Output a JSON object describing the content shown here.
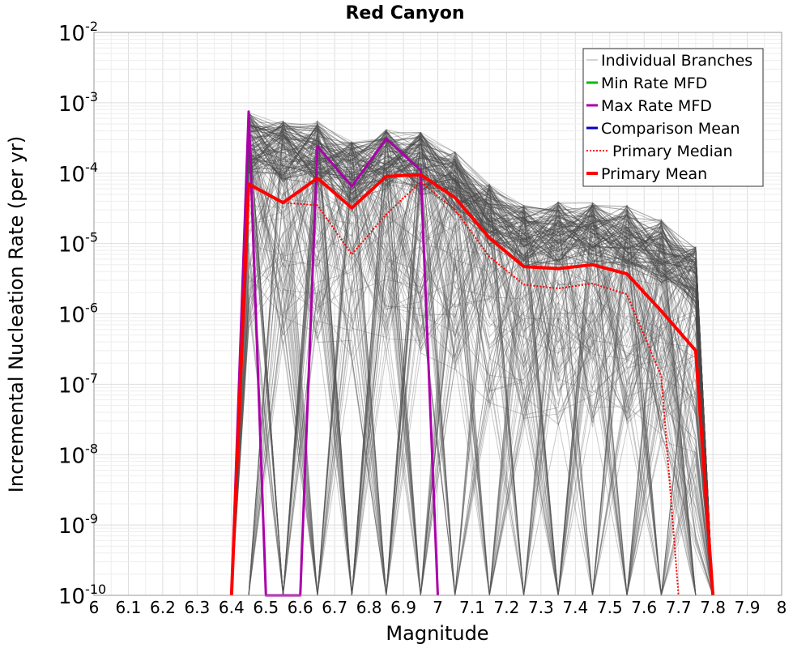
{
  "chart_data": {
    "type": "line",
    "title": "Red Canyon",
    "xlabel": "Magnitude",
    "ylabel": "Incremental Nucleation Rate (per yr)",
    "xlim": [
      6,
      8
    ],
    "ylim": [
      1e-10,
      0.01
    ],
    "yscale": "log",
    "grid": true,
    "legend_position": "top-right",
    "x_ticks": [
      "6",
      "6.1",
      "6.2",
      "6.3",
      "6.4",
      "6.5",
      "6.6",
      "6.7",
      "6.8",
      "6.9",
      "7",
      "7.1",
      "7.2",
      "7.3",
      "7.4",
      "7.5",
      "7.6",
      "7.7",
      "7.8",
      "7.9",
      "8"
    ],
    "y_ticks": [
      {
        "base": "10",
        "exp": "-10",
        "value": -10
      },
      {
        "base": "10",
        "exp": "-9",
        "value": -9
      },
      {
        "base": "10",
        "exp": "-8",
        "value": -8
      },
      {
        "base": "10",
        "exp": "-7",
        "value": -7
      },
      {
        "base": "10",
        "exp": "-6",
        "value": -6
      },
      {
        "base": "10",
        "exp": "-5",
        "value": -5
      },
      {
        "base": "10",
        "exp": "-4",
        "value": -4
      },
      {
        "base": "10",
        "exp": "-3",
        "value": -3
      },
      {
        "base": "10",
        "exp": "-2",
        "value": -2
      }
    ],
    "series": [
      {
        "name": "Individual Branches",
        "color": "#555555",
        "style": "thin-solid",
        "note": "hundreds of logic-tree branch MFDs (rendered as a gray envelope)"
      },
      {
        "name": "Min Rate MFD",
        "color": "#00bb00",
        "style": "solid",
        "x": [],
        "y": []
      },
      {
        "name": "Max Rate MFD",
        "color": "#aa00aa",
        "style": "solid",
        "x": [
          6.4,
          6.45,
          6.5,
          6.6,
          6.65,
          6.75,
          6.85,
          6.95,
          7.0
        ],
        "y": [
          1e-10,
          0.00075,
          1e-10,
          1e-10,
          0.00024,
          6.5e-05,
          0.00031,
          0.00011,
          1e-10
        ]
      },
      {
        "name": "Comparison Mean",
        "color": "#0000cc",
        "style": "solid",
        "x": [],
        "y": []
      },
      {
        "name": "Primary Median",
        "color": "#ff0000",
        "style": "dotted",
        "x": [
          6.4,
          6.45,
          6.55,
          6.65,
          6.75,
          6.85,
          6.95,
          7.05,
          7.15,
          7.25,
          7.35,
          7.45,
          7.55,
          7.65,
          7.7
        ],
        "y": [
          1e-10,
          6.8e-05,
          3.8e-05,
          3.5e-05,
          7e-06,
          2.6e-05,
          7.5e-05,
          3e-05,
          6.5e-06,
          2.6e-06,
          2.3e-06,
          2.7e-06,
          1.9e-06,
          1.3e-07,
          1e-10
        ]
      },
      {
        "name": "Primary Mean",
        "color": "#ff0000",
        "style": "thick-solid",
        "x": [
          6.4,
          6.45,
          6.55,
          6.65,
          6.75,
          6.85,
          6.95,
          7.05,
          7.15,
          7.25,
          7.35,
          7.45,
          7.55,
          7.65,
          7.75,
          7.8
        ],
        "y": [
          1e-10,
          7e-05,
          3.8e-05,
          8.5e-05,
          3.2e-05,
          9e-05,
          9.5e-05,
          4.5e-05,
          1.2e-05,
          4.7e-06,
          4.4e-06,
          5e-06,
          3.7e-06,
          1.1e-06,
          3e-07,
          1e-10
        ]
      }
    ],
    "branch_envelope": {
      "x": [
        6.45,
        6.55,
        6.65,
        6.75,
        6.85,
        6.95,
        7.05,
        7.15,
        7.25,
        7.35,
        7.45,
        7.55,
        7.65,
        7.75
      ],
      "upper": [
        0.00075,
        0.00055,
        0.00055,
        0.00028,
        0.00042,
        0.00038,
        0.0002,
        7e-05,
        3.5e-05,
        4e-05,
        3.8e-05,
        3.5e-05,
        2.2e-05,
        9e-06
      ],
      "lower": [
        1e-10,
        1e-10,
        1e-10,
        1e-10,
        1e-10,
        1e-10,
        1e-10,
        1e-10,
        1e-10,
        1e-10,
        1e-10,
        1e-10,
        1e-10,
        1e-10
      ]
    }
  }
}
